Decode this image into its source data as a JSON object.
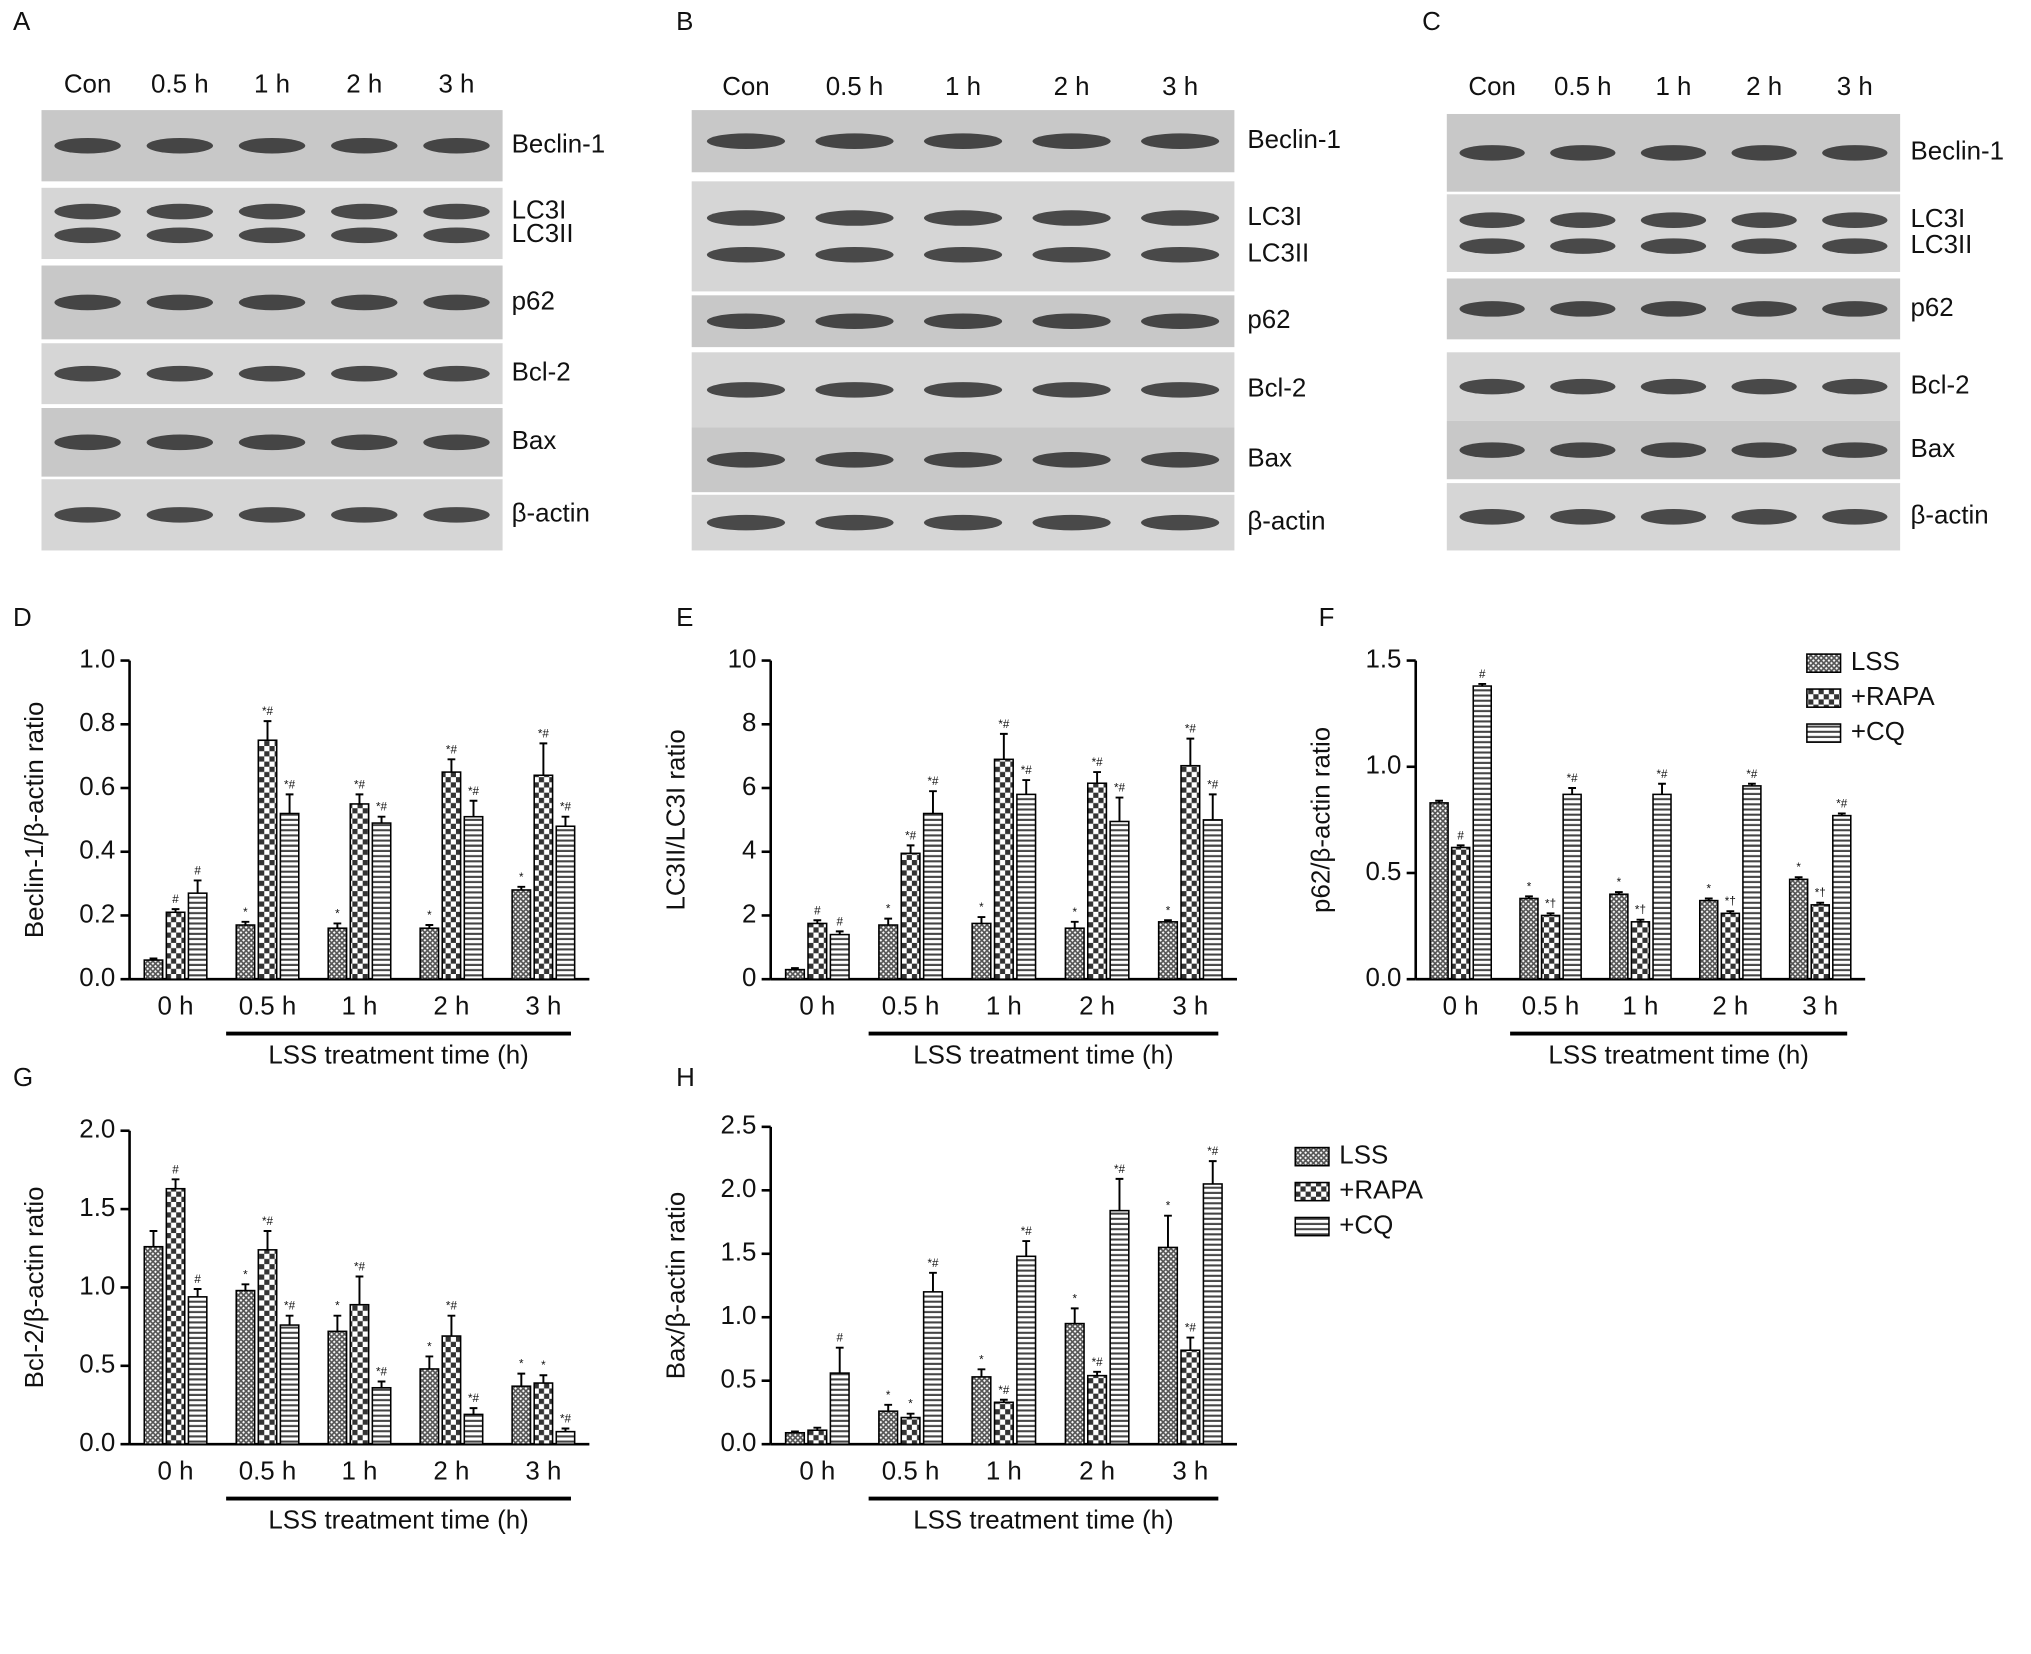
{
  "blots": [
    {
      "panel": "A",
      "lanes": [
        "Con",
        "0.5 h",
        "1 h",
        "2 h",
        "3 h"
      ],
      "rows": [
        [
          "Beclin-1"
        ],
        [
          "LC3I",
          "LC3II"
        ],
        [
          "p62"
        ],
        [
          "Bcl-2"
        ],
        [
          "Bax"
        ],
        [
          "β-actin"
        ]
      ]
    },
    {
      "panel": "B",
      "lanes": [
        "Con",
        "0.5 h",
        "1 h",
        "2 h",
        "3 h"
      ],
      "rows": [
        [
          "Beclin-1"
        ],
        [
          "LC3I",
          "LC3II"
        ],
        [
          "p62"
        ],
        [
          "Bcl-2"
        ],
        [
          "Bax"
        ],
        [
          "β-actin"
        ]
      ]
    },
    {
      "panel": "C",
      "lanes": [
        "Con",
        "0.5 h",
        "1 h",
        "2 h",
        "3 h"
      ],
      "rows": [
        [
          "Beclin-1"
        ],
        [
          "LC3I",
          "LC3II"
        ],
        [
          "p62"
        ],
        [
          "Bcl-2"
        ],
        [
          "Bax"
        ],
        [
          "β-actin"
        ]
      ]
    }
  ],
  "chart_data": [
    {
      "type": "bar",
      "panel": "D",
      "ylabel": "Beclin-1/β-actin ratio",
      "xlabel": "LSS treatment time (h)",
      "categories": [
        "0 h",
        "0.5 h",
        "1 h",
        "2 h",
        "3 h"
      ],
      "ylim": [
        0,
        1.0
      ],
      "yticks": [
        {
          "value": 0,
          "label": "0.0"
        },
        {
          "value": 0.2,
          "label": "0.2"
        },
        {
          "value": 0.4,
          "label": "0.4"
        },
        {
          "value": 0.6,
          "label": "0.6"
        },
        {
          "value": 0.8,
          "label": "0.8"
        },
        {
          "value": 1.0,
          "label": "1.0"
        }
      ],
      "series": [
        {
          "name": "LSS",
          "color": "#555555",
          "values": [
            0.06,
            0.17,
            0.16,
            0.16,
            0.28
          ],
          "errors": [
            0.005,
            0.01,
            0.015,
            0.01,
            0.01
          ],
          "markers": [
            null,
            "*",
            "*",
            "*",
            "*"
          ]
        },
        {
          "name": "+RAPA",
          "color": "#333333",
          "values": [
            0.21,
            0.75,
            0.55,
            0.65,
            0.64
          ],
          "errors": [
            0.01,
            0.06,
            0.03,
            0.04,
            0.1
          ],
          "markers": [
            "#",
            "*#",
            "*#",
            "*#",
            "*#"
          ]
        },
        {
          "name": "+CQ",
          "color": "#444444",
          "values": [
            0.27,
            0.52,
            0.49,
            0.51,
            0.48
          ],
          "errors": [
            0.04,
            0.06,
            0.02,
            0.05,
            0.03
          ],
          "markers": [
            "#",
            "*#",
            "*#",
            "*#",
            "*#"
          ]
        }
      ]
    },
    {
      "type": "bar",
      "panel": "E",
      "ylabel": "LC3II/LC3I ratio",
      "xlabel": "LSS treatment time (h)",
      "categories": [
        "0 h",
        "0.5 h",
        "1 h",
        "2 h",
        "3 h"
      ],
      "ylim": [
        0,
        10
      ],
      "yticks": [
        0,
        2,
        4,
        6,
        8,
        10
      ],
      "series": [
        {
          "name": "LSS",
          "color": "#555555",
          "values": [
            0.3,
            1.7,
            1.75,
            1.6,
            1.8
          ],
          "errors": [
            0.05,
            0.2,
            0.2,
            0.2,
            0.05
          ],
          "markers": [
            null,
            "*",
            "*",
            "*",
            "*"
          ]
        },
        {
          "name": "+RAPA",
          "color": "#333333",
          "values": [
            1.75,
            3.95,
            6.9,
            6.15,
            6.7
          ],
          "errors": [
            0.1,
            0.25,
            0.8,
            0.35,
            0.85
          ],
          "markers": [
            "#",
            "*#",
            "*#",
            "*#",
            "*#"
          ]
        },
        {
          "name": "+CQ",
          "color": "#444444",
          "values": [
            1.4,
            5.2,
            5.8,
            4.95,
            5.0
          ],
          "errors": [
            0.1,
            0.7,
            0.45,
            0.75,
            0.8
          ],
          "markers": [
            "#",
            "*#",
            "*#",
            "*#",
            "*#"
          ]
        }
      ]
    },
    {
      "type": "bar",
      "panel": "F",
      "ylabel": "p62/β-actin ratio",
      "xlabel": "LSS treatment time (h)",
      "legend": "upper right",
      "categories": [
        "0 h",
        "0.5 h",
        "1 h",
        "2 h",
        "3 h"
      ],
      "ylim": [
        0,
        1.5
      ],
      "yticks": [
        {
          "value": 0,
          "label": "0.0"
        },
        {
          "value": 0.5,
          "label": "0.5"
        },
        {
          "value": 1.0,
          "label": "1.0"
        },
        {
          "value": 1.5,
          "label": "1.5"
        }
      ],
      "series": [
        {
          "name": "LSS",
          "color": "#555555",
          "values": [
            0.83,
            0.38,
            0.4,
            0.37,
            0.47
          ],
          "errors": [
            0.01,
            0.01,
            0.01,
            0.01,
            0.01
          ],
          "markers": [
            null,
            "*",
            "*",
            "*",
            "*"
          ]
        },
        {
          "name": "+RAPA",
          "color": "#333333",
          "values": [
            0.62,
            0.3,
            0.27,
            0.31,
            0.35
          ],
          "errors": [
            0.01,
            0.01,
            0.01,
            0.01,
            0.01
          ],
          "markers": [
            "#",
            "*†",
            "*†",
            "*†",
            "*†"
          ]
        },
        {
          "name": "+CQ",
          "color": "#444444",
          "values": [
            1.38,
            0.87,
            0.87,
            0.91,
            0.77
          ],
          "errors": [
            0.01,
            0.03,
            0.05,
            0.01,
            0.01
          ],
          "markers": [
            "#",
            "*#",
            "*#",
            "*#",
            "*#"
          ]
        }
      ]
    },
    {
      "type": "bar",
      "panel": "G",
      "ylabel": "Bcl-2/β-actin ratio",
      "xlabel": "LSS treatment time (h)",
      "categories": [
        "0 h",
        "0.5 h",
        "1 h",
        "2 h",
        "3 h"
      ],
      "ylim": [
        0,
        2.0
      ],
      "yticks": [
        {
          "value": 0,
          "label": "0.0"
        },
        {
          "value": 0.5,
          "label": "0.5"
        },
        {
          "value": 1.0,
          "label": "1.0"
        },
        {
          "value": 1.5,
          "label": "1.5"
        },
        {
          "value": 2.0,
          "label": "2.0"
        }
      ],
      "series": [
        {
          "name": "LSS",
          "color": "#555555",
          "values": [
            1.26,
            0.98,
            0.72,
            0.48,
            0.37
          ],
          "errors": [
            0.1,
            0.04,
            0.1,
            0.08,
            0.08
          ],
          "markers": [
            null,
            "*",
            "*",
            "*",
            "*"
          ]
        },
        {
          "name": "+RAPA",
          "color": "#333333",
          "values": [
            1.63,
            1.24,
            0.89,
            0.69,
            0.39
          ],
          "errors": [
            0.06,
            0.12,
            0.18,
            0.13,
            0.05
          ],
          "markers": [
            "#",
            "*#",
            "*#",
            "*#",
            "*"
          ]
        },
        {
          "name": "+CQ",
          "color": "#444444",
          "values": [
            0.94,
            0.76,
            0.36,
            0.19,
            0.08
          ],
          "errors": [
            0.05,
            0.06,
            0.04,
            0.04,
            0.02
          ],
          "markers": [
            "#",
            "*#",
            "*#",
            "*#",
            "*#"
          ]
        }
      ]
    },
    {
      "type": "bar",
      "panel": "H",
      "ylabel": "Bax/β-actin ratio",
      "xlabel": "LSS treatment time (h)",
      "legend": "right",
      "categories": [
        "0 h",
        "0.5 h",
        "1 h",
        "2 h",
        "3 h"
      ],
      "ylim": [
        0,
        2.5
      ],
      "yticks": [
        {
          "value": 0,
          "label": "0.0"
        },
        {
          "value": 0.5,
          "label": "0.5"
        },
        {
          "value": 1.0,
          "label": "1.0"
        },
        {
          "value": 1.5,
          "label": "1.5"
        },
        {
          "value": 2.0,
          "label": "2.0"
        },
        {
          "value": 2.5,
          "label": "2.5"
        }
      ],
      "series": [
        {
          "name": "LSS",
          "color": "#555555",
          "values": [
            0.09,
            0.26,
            0.53,
            0.95,
            1.55
          ],
          "errors": [
            0.01,
            0.05,
            0.06,
            0.12,
            0.25
          ],
          "markers": [
            null,
            "*",
            "*",
            "*",
            "*"
          ]
        },
        {
          "name": "+RAPA",
          "color": "#333333",
          "values": [
            0.11,
            0.21,
            0.33,
            0.54,
            0.74
          ],
          "errors": [
            0.02,
            0.03,
            0.02,
            0.03,
            0.1
          ],
          "markers": [
            null,
            "*",
            "*#",
            "*#",
            "*#"
          ]
        },
        {
          "name": "+CQ",
          "color": "#444444",
          "values": [
            0.56,
            1.2,
            1.48,
            1.84,
            2.05
          ],
          "errors": [
            0.2,
            0.15,
            0.12,
            0.25,
            0.18
          ],
          "markers": [
            "#",
            "*#",
            "*#",
            "*#",
            "*#"
          ]
        }
      ]
    }
  ]
}
